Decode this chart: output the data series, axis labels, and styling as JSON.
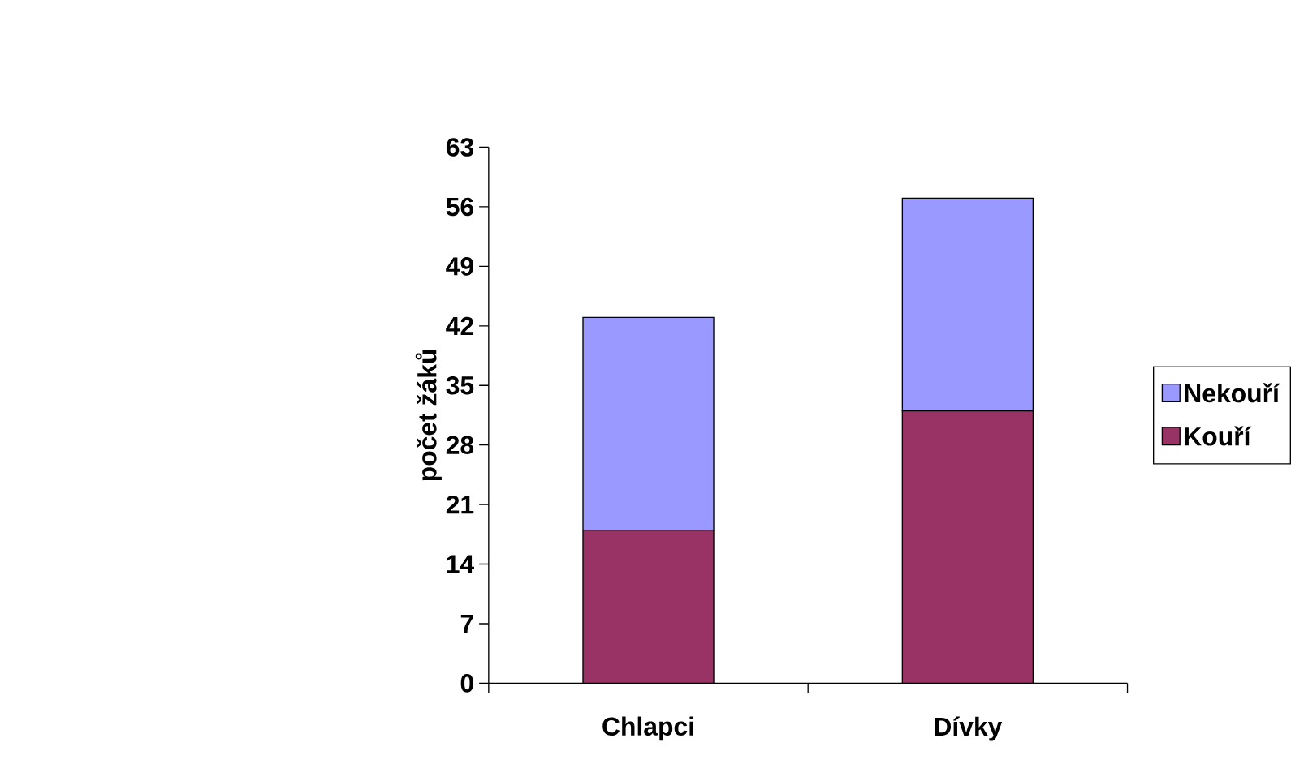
{
  "chart_data": {
    "type": "bar",
    "stacked": true,
    "ylabel": "počet žáků",
    "categories": [
      "Chlapci",
      "Dívky"
    ],
    "series": [
      {
        "name": "Kouří",
        "color": "#993366",
        "values": [
          18,
          32
        ]
      },
      {
        "name": "Nekouří",
        "color": "#9999ff",
        "values": [
          25,
          25
        ]
      }
    ],
    "ylim": [
      0,
      63
    ],
    "yticks": [
      0,
      7,
      14,
      21,
      28,
      35,
      42,
      49,
      56,
      63
    ],
    "legend": "right"
  }
}
